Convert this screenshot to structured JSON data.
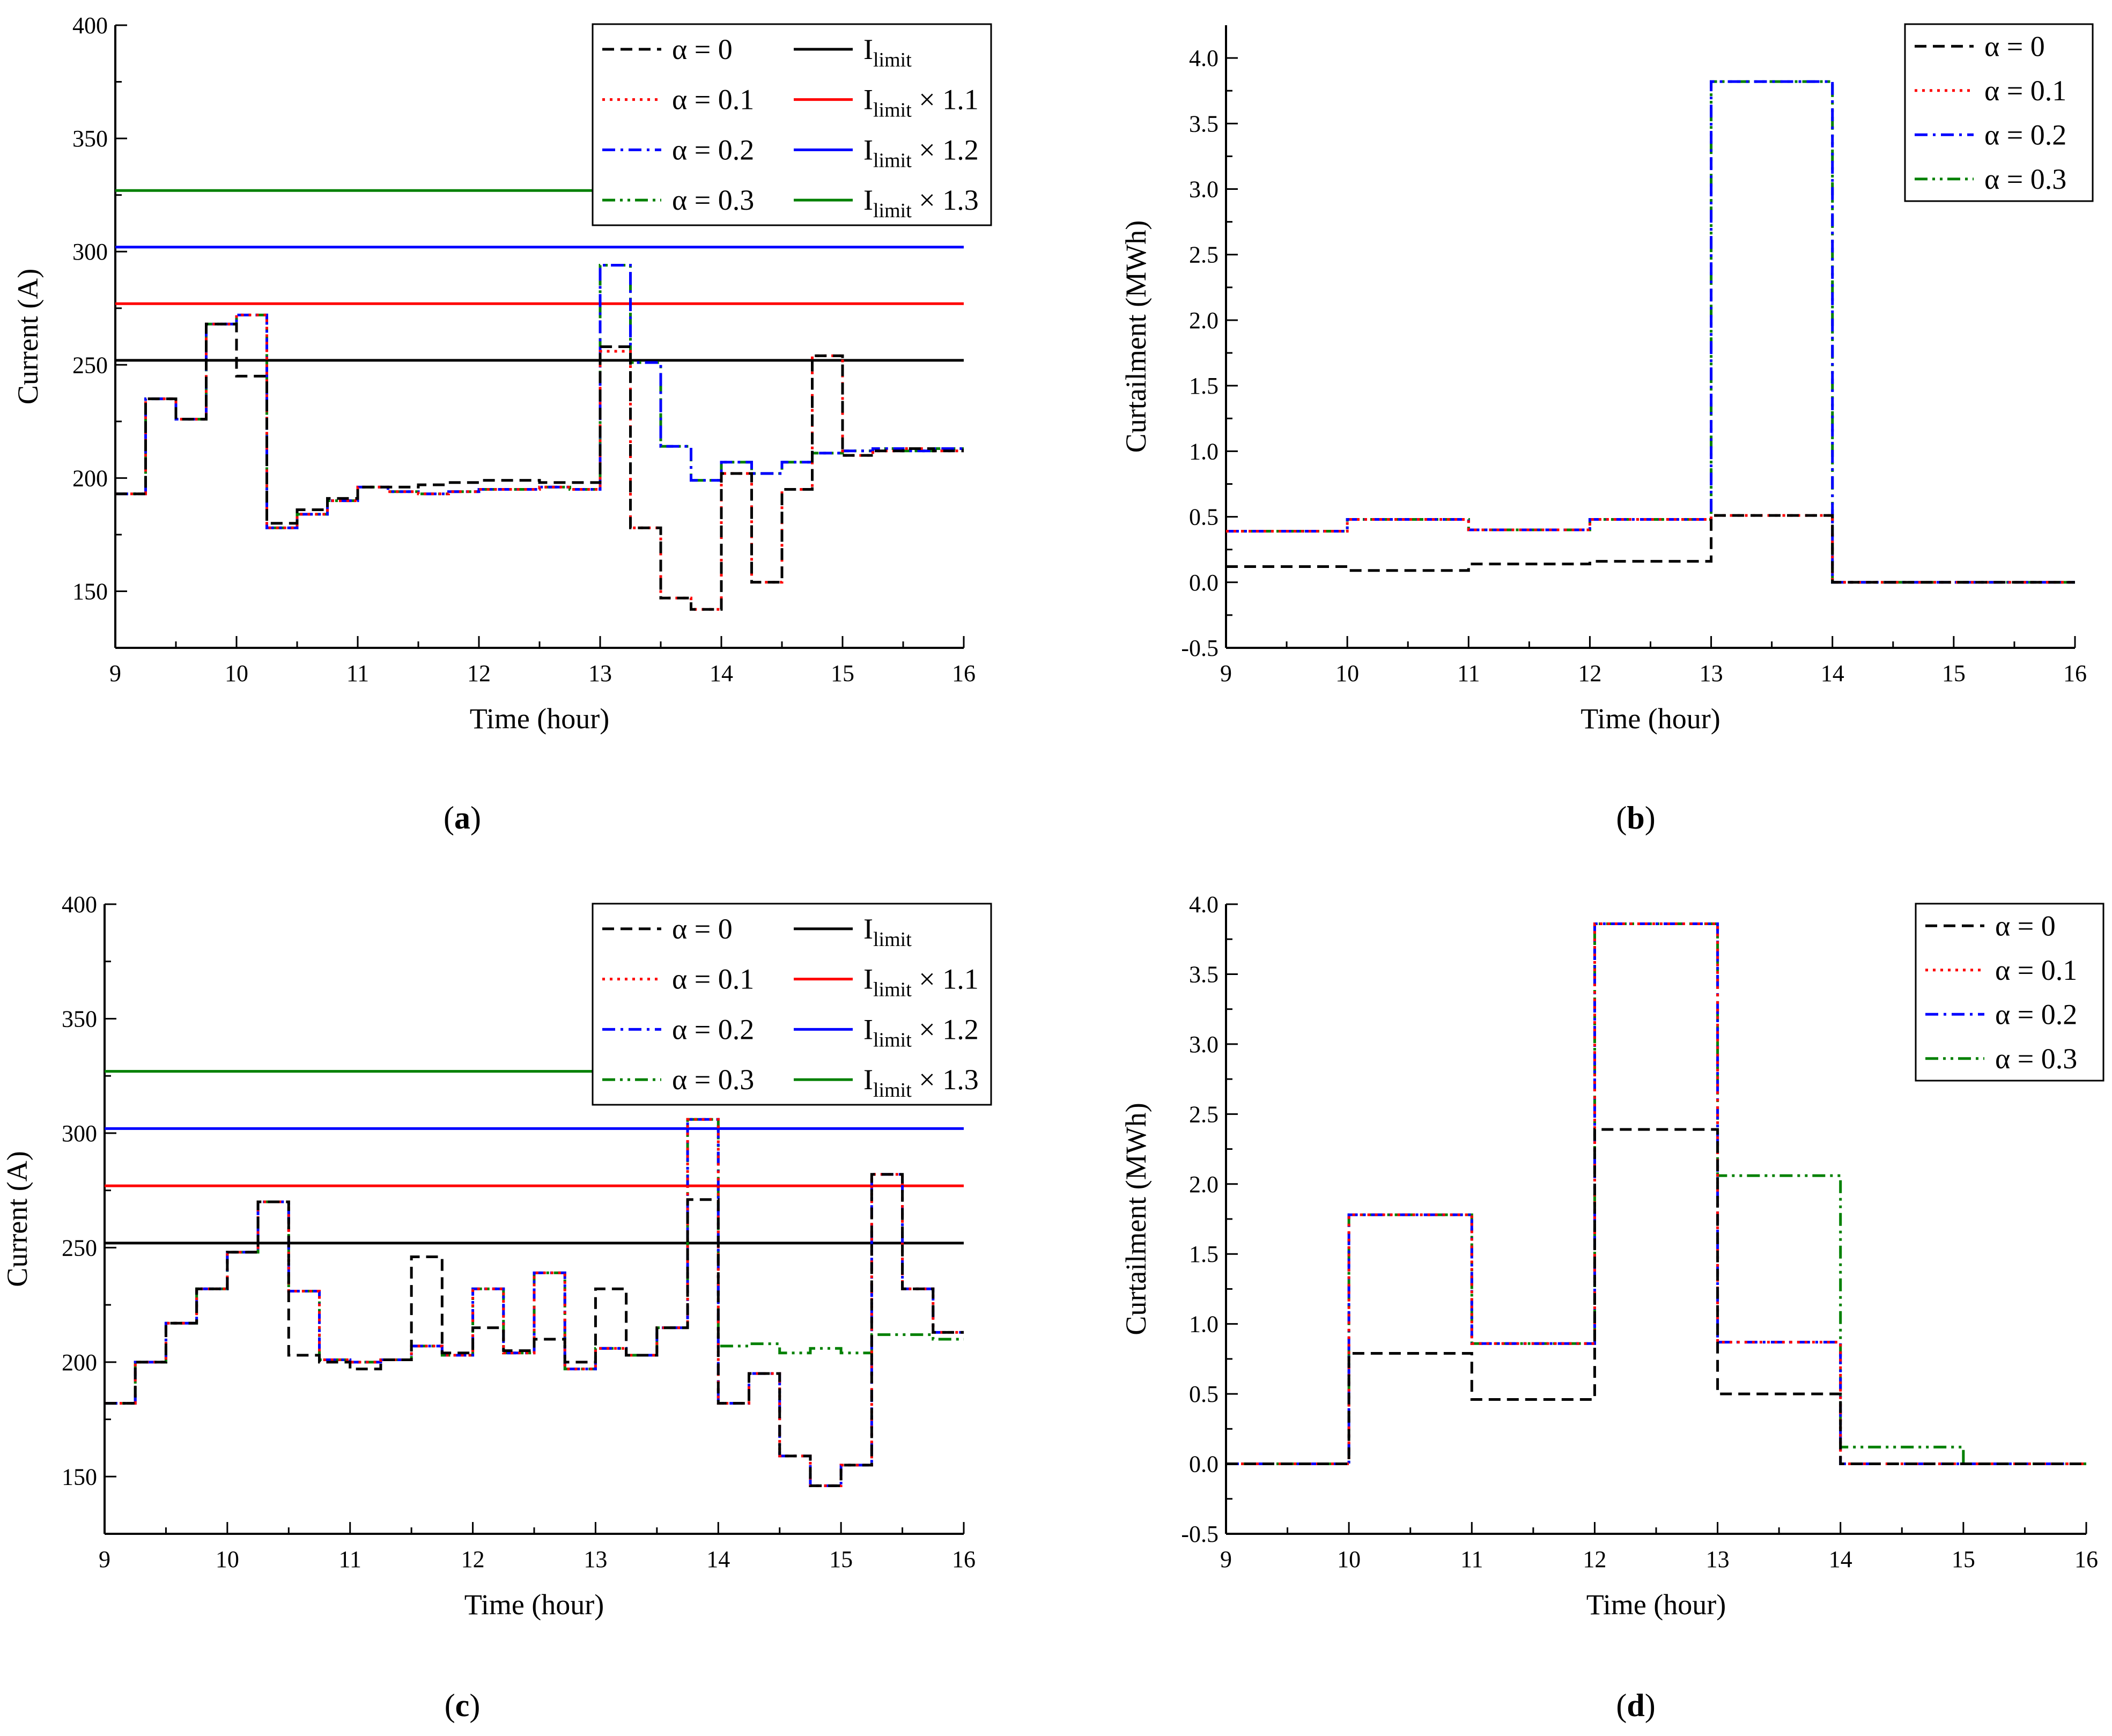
{
  "figure": {
    "panels": [
      {
        "id": "a",
        "caption_letter": "a"
      },
      {
        "id": "b",
        "caption_letter": "b"
      },
      {
        "id": "c",
        "caption_letter": "c"
      },
      {
        "id": "d",
        "caption_letter": "d"
      }
    ]
  },
  "chart_data": [
    {
      "id": "a",
      "type": "line",
      "xlabel": "Time (hour)",
      "ylabel": "Current (A)",
      "xlim": [
        9,
        16
      ],
      "ylim": [
        125,
        400
      ],
      "xticks": [
        9,
        10,
        11,
        12,
        13,
        14,
        15,
        16
      ],
      "yticks": [
        150,
        200,
        250,
        300,
        350,
        400
      ],
      "legend_position": "top-right",
      "legend_columns": 2,
      "series": [
        {
          "name": "α = 0",
          "color": "#000000",
          "style": "dash",
          "x": [
            9,
            9.25,
            9.5,
            9.75,
            10,
            10.25,
            10.5,
            10.75,
            11,
            11.25,
            11.5,
            11.75,
            12,
            12.25,
            12.5,
            12.75,
            13,
            13.25,
            13.5,
            13.75,
            14,
            14.25,
            14.5,
            14.75,
            15,
            15.25,
            15.5,
            15.75,
            16
          ],
          "y": [
            193,
            235,
            226,
            268,
            245,
            180,
            186,
            191,
            196,
            196,
            197,
            198,
            199,
            199,
            198,
            198,
            258,
            178,
            147,
            142,
            202,
            154,
            195,
            254,
            210,
            212,
            213,
            212,
            213
          ]
        },
        {
          "name": "α = 0.1",
          "color": "#ff0000",
          "style": "dot",
          "x": [
            9,
            9.25,
            9.5,
            9.75,
            10,
            10.25,
            10.5,
            10.75,
            11,
            11.25,
            11.5,
            11.75,
            12,
            12.25,
            12.5,
            12.75,
            13,
            13.25,
            13.5,
            13.75,
            14,
            14.25,
            14.5,
            14.75,
            15,
            15.25,
            15.5,
            15.75,
            16
          ],
          "y": [
            193,
            235,
            226,
            268,
            272,
            178,
            184,
            190,
            196,
            194,
            193,
            194,
            195,
            195,
            196,
            195,
            256,
            178,
            147,
            142,
            202,
            154,
            195,
            254,
            210,
            212,
            213,
            212,
            213
          ]
        },
        {
          "name": "α = 0.2",
          "color": "#0000ff",
          "style": "dashdot",
          "x": [
            9,
            9.25,
            9.5,
            9.75,
            10,
            10.25,
            10.5,
            10.75,
            11,
            11.25,
            11.5,
            11.75,
            12,
            12.25,
            12.5,
            12.75,
            13,
            13.25,
            13.5,
            13.75,
            14,
            14.25,
            14.5,
            14.75,
            15,
            15.25,
            15.5,
            15.75,
            16
          ],
          "y": [
            193,
            235,
            226,
            268,
            272,
            178,
            184,
            190,
            196,
            194,
            193,
            194,
            195,
            195,
            196,
            195,
            294,
            251,
            214,
            199,
            207,
            202,
            207,
            211,
            212,
            213,
            212,
            213,
            213
          ]
        },
        {
          "name": "α = 0.3",
          "color": "#008000",
          "style": "dashdotdot",
          "x": [
            9,
            9.25,
            9.5,
            9.75,
            10,
            10.25,
            10.5,
            10.75,
            11,
            11.25,
            11.5,
            11.75,
            12,
            12.25,
            12.5,
            12.75,
            13,
            13.25,
            13.5,
            13.75,
            14,
            14.25,
            14.5,
            14.75,
            15,
            15.25,
            15.5,
            15.75,
            16
          ],
          "y": [
            193,
            235,
            226,
            268,
            272,
            178,
            184,
            190,
            196,
            194,
            193,
            194,
            195,
            195,
            196,
            195,
            294,
            251,
            214,
            199,
            207,
            202,
            207,
            211,
            212,
            213,
            212,
            213,
            213
          ]
        }
      ],
      "limits": [
        {
          "name": "I",
          "sub": "limit",
          "suffix": "",
          "value": 252,
          "color": "#000000"
        },
        {
          "name": "I",
          "sub": "limit",
          "suffix": " × 1.1",
          "value": 277,
          "color": "#ff0000"
        },
        {
          "name": "I",
          "sub": "limit",
          "suffix": " × 1.2",
          "value": 302,
          "color": "#0000ff"
        },
        {
          "name": "I",
          "sub": "limit",
          "suffix": " × 1.3",
          "value": 327,
          "color": "#008000"
        }
      ]
    },
    {
      "id": "b",
      "type": "line",
      "xlabel": "Time (hour)",
      "ylabel": "Curtailment (MWh)",
      "xlim": [
        9,
        16
      ],
      "ylim": [
        -0.5,
        4.25
      ],
      "xticks": [
        9,
        10,
        11,
        12,
        13,
        14,
        15,
        16
      ],
      "yticks": [
        -0.5,
        0.0,
        0.5,
        1.0,
        1.5,
        2.0,
        2.5,
        3.0,
        3.5,
        4.0
      ],
      "legend_position": "top-right",
      "legend_columns": 1,
      "series": [
        {
          "name": "α = 0",
          "color": "#000000",
          "style": "dash",
          "x": [
            9,
            10,
            11,
            12,
            13,
            14,
            15,
            16
          ],
          "y": [
            0.12,
            0.09,
            0.14,
            0.16,
            0.51,
            0.0,
            0.0,
            0.0
          ]
        },
        {
          "name": "α = 0.1",
          "color": "#ff0000",
          "style": "dot",
          "x": [
            9,
            10,
            11,
            12,
            13,
            14,
            15,
            16
          ],
          "y": [
            0.39,
            0.48,
            0.4,
            0.48,
            0.51,
            0.0,
            0.0,
            0.0
          ]
        },
        {
          "name": "α = 0.2",
          "color": "#0000ff",
          "style": "dashdot",
          "x": [
            9,
            10,
            11,
            12,
            13,
            14,
            15,
            16
          ],
          "y": [
            0.39,
            0.48,
            0.4,
            0.48,
            3.82,
            0.0,
            0.0,
            0.0
          ]
        },
        {
          "name": "α = 0.3",
          "color": "#008000",
          "style": "dashdotdot",
          "x": [
            9,
            10,
            11,
            12,
            13,
            14,
            15,
            16
          ],
          "y": [
            0.39,
            0.48,
            0.4,
            0.48,
            3.82,
            0.0,
            0.0,
            0.0
          ]
        }
      ]
    },
    {
      "id": "c",
      "type": "line",
      "xlabel": "Time (hour)",
      "ylabel": "Current (A)",
      "xlim": [
        9,
        16
      ],
      "ylim": [
        125,
        400
      ],
      "xticks": [
        9,
        10,
        11,
        12,
        13,
        14,
        15,
        16
      ],
      "yticks": [
        150,
        200,
        250,
        300,
        350,
        400
      ],
      "legend_position": "top-right",
      "legend_columns": 2,
      "series": [
        {
          "name": "α = 0",
          "color": "#000000",
          "style": "dash",
          "x": [
            9,
            9.25,
            9.5,
            9.75,
            10,
            10.25,
            10.5,
            10.75,
            11,
            11.25,
            11.5,
            11.75,
            12,
            12.25,
            12.5,
            12.75,
            13,
            13.25,
            13.5,
            13.75,
            14,
            14.25,
            14.5,
            14.75,
            15,
            15.25,
            15.5,
            15.75,
            16
          ],
          "y": [
            182,
            200,
            217,
            232,
            248,
            270,
            203,
            200,
            197,
            201,
            246,
            204,
            215,
            205,
            210,
            200,
            232,
            203,
            215,
            271,
            182,
            195,
            159,
            146,
            155,
            282,
            232,
            213,
            213
          ]
        },
        {
          "name": "α = 0.1",
          "color": "#ff0000",
          "style": "dot",
          "x": [
            9,
            9.25,
            9.5,
            9.75,
            10,
            10.25,
            10.5,
            10.75,
            11,
            11.25,
            11.5,
            11.75,
            12,
            12.25,
            12.5,
            12.75,
            13,
            13.25,
            13.5,
            13.75,
            14,
            14.25,
            14.5,
            14.75,
            15,
            15.25,
            15.5,
            15.75,
            16
          ],
          "y": [
            182,
            200,
            217,
            232,
            248,
            270,
            231,
            201,
            200,
            201,
            207,
            203,
            232,
            204,
            239,
            197,
            206,
            203,
            215,
            306,
            182,
            195,
            159,
            146,
            155,
            282,
            232,
            213,
            213
          ]
        },
        {
          "name": "α = 0.2",
          "color": "#0000ff",
          "style": "dashdot",
          "x": [
            9,
            9.25,
            9.5,
            9.75,
            10,
            10.25,
            10.5,
            10.75,
            11,
            11.25,
            11.5,
            11.75,
            12,
            12.25,
            12.5,
            12.75,
            13,
            13.25,
            13.5,
            13.75,
            14,
            14.25,
            14.5,
            14.75,
            15,
            15.25,
            15.5,
            15.75,
            16
          ],
          "y": [
            182,
            200,
            217,
            232,
            248,
            270,
            231,
            201,
            200,
            201,
            207,
            203,
            232,
            204,
            239,
            197,
            206,
            203,
            215,
            306,
            182,
            195,
            159,
            146,
            155,
            282,
            232,
            213,
            213
          ]
        },
        {
          "name": "α = 0.3",
          "color": "#008000",
          "style": "dashdotdot",
          "x": [
            9,
            9.25,
            9.5,
            9.75,
            10,
            10.25,
            10.5,
            10.75,
            11,
            11.25,
            11.5,
            11.75,
            12,
            12.25,
            12.5,
            12.75,
            13,
            13.25,
            13.5,
            13.75,
            14,
            14.25,
            14.5,
            14.75,
            15,
            15.25,
            15.5,
            15.75,
            16
          ],
          "y": [
            182,
            200,
            217,
            232,
            248,
            270,
            231,
            201,
            200,
            201,
            207,
            203,
            232,
            204,
            239,
            197,
            206,
            203,
            215,
            306,
            207,
            208,
            204,
            206,
            204,
            212,
            212,
            210,
            210
          ]
        }
      ],
      "limits": [
        {
          "name": "I",
          "sub": "limit",
          "suffix": "",
          "value": 252,
          "color": "#000000"
        },
        {
          "name": "I",
          "sub": "limit",
          "suffix": " × 1.1",
          "value": 277,
          "color": "#ff0000"
        },
        {
          "name": "I",
          "sub": "limit",
          "suffix": " × 1.2",
          "value": 302,
          "color": "#0000ff"
        },
        {
          "name": "I",
          "sub": "limit",
          "suffix": " × 1.3",
          "value": 327,
          "color": "#008000"
        }
      ]
    },
    {
      "id": "d",
      "type": "line",
      "xlabel": "Time (hour)",
      "ylabel": "Curtailment (MWh)",
      "xlim": [
        9,
        16
      ],
      "ylim": [
        -0.5,
        4.0
      ],
      "xticks": [
        9,
        10,
        11,
        12,
        13,
        14,
        15,
        16
      ],
      "yticks": [
        -0.5,
        0.0,
        0.5,
        1.0,
        1.5,
        2.0,
        2.5,
        3.0,
        3.5,
        4.0
      ],
      "legend_position": "top-right",
      "legend_columns": 1,
      "series": [
        {
          "name": "α = 0",
          "color": "#000000",
          "style": "dash",
          "x": [
            9,
            10,
            11,
            12,
            13,
            14,
            15,
            16
          ],
          "y": [
            0.0,
            0.79,
            0.46,
            2.39,
            0.5,
            0.0,
            0.0,
            0.0
          ]
        },
        {
          "name": "α = 0.1",
          "color": "#ff0000",
          "style": "dot",
          "x": [
            9,
            10,
            11,
            12,
            13,
            14,
            15,
            16
          ],
          "y": [
            0.0,
            1.78,
            0.86,
            3.86,
            0.87,
            0.0,
            0.0,
            0.0
          ]
        },
        {
          "name": "α = 0.2",
          "color": "#0000ff",
          "style": "dashdot",
          "x": [
            9,
            10,
            11,
            12,
            13,
            14,
            15,
            16
          ],
          "y": [
            0.0,
            1.78,
            0.86,
            3.86,
            0.87,
            0.0,
            0.0,
            0.0
          ]
        },
        {
          "name": "α = 0.3",
          "color": "#008000",
          "style": "dashdotdot",
          "x": [
            9,
            10,
            11,
            12,
            13,
            14,
            15,
            16
          ],
          "y": [
            0.0,
            1.78,
            0.86,
            3.86,
            2.06,
            0.12,
            0.0,
            0.0
          ]
        }
      ]
    }
  ]
}
